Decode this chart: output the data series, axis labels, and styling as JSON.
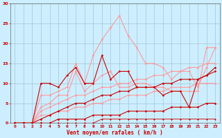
{
  "xlabel": "Vent moyen/en rafales ( km/h )",
  "background_color": "#cceeff",
  "grid_color": "#99bbcc",
  "xlim": [
    -0.5,
    23.5
  ],
  "ylim": [
    0,
    30
  ],
  "xticks": [
    0,
    1,
    2,
    3,
    4,
    5,
    6,
    7,
    8,
    9,
    10,
    11,
    12,
    13,
    14,
    15,
    16,
    17,
    18,
    19,
    20,
    21,
    22,
    23
  ],
  "yticks": [
    0,
    5,
    10,
    15,
    20,
    25,
    30
  ],
  "series": [
    {
      "x": [
        0,
        1,
        2,
        3,
        4,
        5,
        6,
        7,
        8,
        9,
        10,
        11,
        12,
        13,
        14,
        15,
        16,
        17,
        18,
        19,
        20,
        21,
        22,
        23
      ],
      "y": [
        0,
        0,
        0,
        7,
        7,
        8,
        9,
        15,
        10,
        17,
        21,
        24,
        27,
        22,
        19,
        15,
        15,
        14,
        11,
        13,
        13,
        9,
        14,
        19
      ],
      "color": "#ff9999",
      "marker": "D",
      "markersize": 1.5,
      "linewidth": 0.8,
      "alpha": 1.0
    },
    {
      "x": [
        0,
        1,
        2,
        3,
        4,
        5,
        6,
        7,
        8,
        9,
        10,
        11,
        12,
        13,
        14,
        15,
        16,
        17,
        18,
        19,
        20,
        21,
        22,
        23
      ],
      "y": [
        0,
        0,
        0,
        4,
        5,
        7,
        7,
        13,
        8,
        10,
        12,
        13,
        9,
        9,
        10,
        10,
        9,
        9,
        8,
        8,
        8,
        8,
        19,
        19
      ],
      "color": "#ff9999",
      "marker": "D",
      "markersize": 1.5,
      "linewidth": 0.8,
      "alpha": 1.0
    },
    {
      "x": [
        0,
        1,
        2,
        3,
        4,
        5,
        6,
        7,
        8,
        9,
        10,
        11,
        12,
        13,
        14,
        15,
        16,
        17,
        18,
        19,
        20,
        21,
        22,
        23
      ],
      "y": [
        0,
        0,
        0,
        3,
        4,
        5,
        6,
        7,
        7,
        8,
        9,
        9,
        10,
        10,
        11,
        11,
        12,
        12,
        13,
        13,
        14,
        14,
        15,
        15
      ],
      "color": "#ff9999",
      "marker": "D",
      "markersize": 1.5,
      "linewidth": 0.8,
      "alpha": 1.0
    },
    {
      "x": [
        0,
        1,
        2,
        3,
        4,
        5,
        6,
        7,
        8,
        9,
        10,
        11,
        12,
        13,
        14,
        15,
        16,
        17,
        18,
        19,
        20,
        21,
        22,
        23
      ],
      "y": [
        0,
        0,
        0,
        2,
        2,
        3,
        3,
        4,
        4,
        5,
        5,
        6,
        6,
        7,
        7,
        7,
        8,
        8,
        9,
        9,
        9,
        10,
        10,
        10
      ],
      "color": "#ff9999",
      "marker": "D",
      "markersize": 1.5,
      "linewidth": 0.8,
      "alpha": 1.0
    },
    {
      "x": [
        0,
        1,
        2,
        3,
        4,
        5,
        6,
        7,
        8,
        9,
        10,
        11,
        12,
        13,
        14,
        15,
        16,
        17,
        18,
        19,
        20,
        21,
        22,
        23
      ],
      "y": [
        0,
        0,
        0,
        10,
        10,
        9,
        12,
        14,
        10,
        10,
        17,
        11,
        13,
        13,
        9,
        9,
        9,
        7,
        8,
        8,
        4,
        11,
        12,
        14
      ],
      "color": "#cc0000",
      "marker": "D",
      "markersize": 1.5,
      "linewidth": 0.8,
      "alpha": 1.0
    },
    {
      "x": [
        0,
        1,
        2,
        3,
        4,
        5,
        6,
        7,
        8,
        9,
        10,
        11,
        12,
        13,
        14,
        15,
        16,
        17,
        18,
        19,
        20,
        21,
        22,
        23
      ],
      "y": [
        0,
        0,
        0,
        1,
        2,
        3,
        4,
        5,
        5,
        6,
        7,
        7,
        8,
        8,
        9,
        9,
        9,
        10,
        10,
        11,
        11,
        11,
        12,
        13
      ],
      "color": "#cc0000",
      "marker": "D",
      "markersize": 1.5,
      "linewidth": 0.8,
      "alpha": 1.0
    },
    {
      "x": [
        0,
        1,
        2,
        3,
        4,
        5,
        6,
        7,
        8,
        9,
        10,
        11,
        12,
        13,
        14,
        15,
        16,
        17,
        18,
        19,
        20,
        21,
        22,
        23
      ],
      "y": [
        0,
        0,
        0,
        0,
        0,
        1,
        1,
        1,
        1,
        2,
        2,
        2,
        2,
        3,
        3,
        3,
        3,
        3,
        4,
        4,
        4,
        4,
        5,
        5
      ],
      "color": "#cc0000",
      "marker": "D",
      "markersize": 1.5,
      "linewidth": 0.8,
      "alpha": 1.0
    },
    {
      "x": [
        0,
        1,
        2,
        3,
        4,
        5,
        6,
        7,
        8,
        9,
        10,
        11,
        12,
        13,
        14,
        15,
        16,
        17,
        18,
        19,
        20,
        21,
        22,
        23
      ],
      "y": [
        0,
        0,
        0,
        0,
        0,
        0,
        0,
        0,
        0,
        0,
        1,
        1,
        1,
        1,
        1,
        1,
        1,
        1,
        1,
        1,
        1,
        1,
        1,
        1
      ],
      "color": "#cc0000",
      "marker": "D",
      "markersize": 1.0,
      "linewidth": 0.6,
      "alpha": 1.0
    }
  ]
}
